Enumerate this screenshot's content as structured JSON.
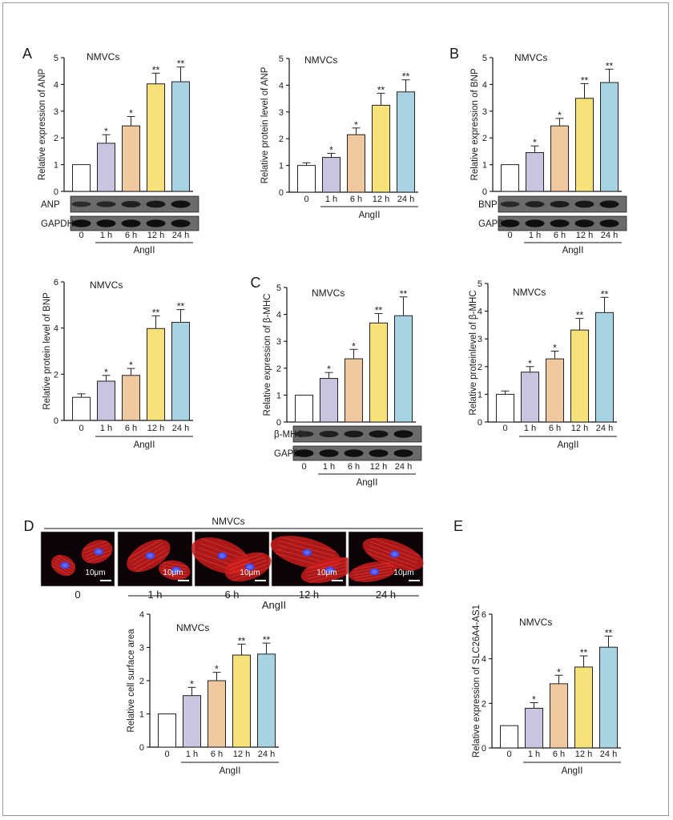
{
  "panel_letters": [
    "A",
    "B",
    "C",
    "D",
    "E"
  ],
  "categories": [
    "0",
    "1 h",
    "6 h",
    "12 h",
    "24 h"
  ],
  "group_label": "AngII",
  "colors": [
    "#ffffff",
    "#c9c4e0",
    "#f0c8a0",
    "#f7e27a",
    "#a8d3e2"
  ],
  "blots": [
    {
      "bands": [
        "ANP",
        "GAPDH"
      ],
      "intensities": [
        [
          0.35,
          0.45,
          0.6,
          0.75,
          0.85
        ],
        [
          0.9,
          0.9,
          0.9,
          0.9,
          0.9
        ]
      ]
    },
    {
      "bands": [
        "BNP",
        "GAPDH"
      ],
      "intensities": [
        [
          0.4,
          0.55,
          0.65,
          0.75,
          0.85
        ],
        [
          0.9,
          0.9,
          0.9,
          0.9,
          0.9
        ]
      ]
    },
    {
      "bands": [
        "β-MHC",
        "GAPDH"
      ],
      "intensities": [
        [
          0.45,
          0.6,
          0.7,
          0.8,
          0.9
        ],
        [
          0.9,
          0.9,
          0.9,
          0.9,
          0.9
        ]
      ]
    }
  ],
  "micrograph": {
    "header": "NMVCs",
    "scale_bar": "10μm",
    "labels": [
      "0",
      "1 h",
      "6 h",
      "12 h",
      "24 h"
    ],
    "group_label": "AngII"
  },
  "chart_data": [
    {
      "id": "A-mrna",
      "type": "bar",
      "title": "NMVCs",
      "ylabel": "Relative expression of ANP",
      "categories": [
        "0",
        "1 h",
        "6 h",
        "12 h",
        "24 h"
      ],
      "values": [
        1,
        1.8,
        2.45,
        4.02,
        4.1
      ],
      "errors": [
        0,
        0.32,
        0.35,
        0.4,
        0.55
      ],
      "significance": [
        "",
        "*",
        "*",
        "**",
        "**"
      ],
      "ylim": [
        0,
        5
      ],
      "yticks": [
        0,
        1,
        2,
        3,
        4,
        5
      ],
      "xlabel": "AngII"
    },
    {
      "id": "A-protein",
      "type": "bar",
      "title": "NMVCs",
      "ylabel": "Relative protein level of ANP",
      "categories": [
        "0",
        "1 h",
        "6 h",
        "12 h",
        "24 h"
      ],
      "values": [
        1,
        1.3,
        2.15,
        3.25,
        3.75
      ],
      "errors": [
        0.1,
        0.15,
        0.25,
        0.45,
        0.45
      ],
      "significance": [
        "",
        "*",
        "*",
        "**",
        "**"
      ],
      "ylim": [
        0,
        5
      ],
      "yticks": [
        0,
        1,
        2,
        3,
        4,
        5
      ],
      "xlabel": "AngII"
    },
    {
      "id": "B-mrna",
      "type": "bar",
      "title": "NMVCs",
      "ylabel": "Relative expression of BNP",
      "categories": [
        "0",
        "1 h",
        "6 h",
        "12 h",
        "24 h"
      ],
      "values": [
        1,
        1.45,
        2.45,
        3.48,
        4.07
      ],
      "errors": [
        0,
        0.25,
        0.28,
        0.55,
        0.5
      ],
      "significance": [
        "",
        "*",
        "*",
        "**",
        "**"
      ],
      "ylim": [
        0,
        5
      ],
      "yticks": [
        0,
        1,
        2,
        3,
        4,
        5
      ],
      "xlabel": "AngII"
    },
    {
      "id": "B-protein",
      "type": "bar",
      "title": "NMVCs",
      "ylabel": "Relative protein level of BNP",
      "categories": [
        "0",
        "1 h",
        "6 h",
        "12 h",
        "24 h"
      ],
      "values": [
        1,
        1.7,
        1.95,
        3.98,
        4.25
      ],
      "errors": [
        0.15,
        0.25,
        0.3,
        0.55,
        0.55
      ],
      "significance": [
        "",
        "*",
        "*",
        "**",
        "**"
      ],
      "ylim": [
        0,
        6
      ],
      "yticks": [
        0,
        2,
        4,
        6
      ],
      "xlabel": "AngII"
    },
    {
      "id": "C-mrna",
      "type": "bar",
      "title": "NMVCs",
      "ylabel": "Relative expression of β-MHC",
      "categories": [
        "0",
        "1 h",
        "6 h",
        "12 h",
        "24 h"
      ],
      "values": [
        1,
        1.62,
        2.35,
        3.68,
        3.95
      ],
      "errors": [
        0,
        0.22,
        0.35,
        0.35,
        0.7
      ],
      "significance": [
        "",
        "*",
        "*",
        "**",
        "**"
      ],
      "ylim": [
        0,
        5
      ],
      "yticks": [
        0,
        1,
        2,
        3,
        4,
        5
      ],
      "xlabel": "AngII"
    },
    {
      "id": "C-protein",
      "type": "bar",
      "title": "NMVCs",
      "ylabel": "Relative proteinlevel of β-MHC",
      "categories": [
        "0",
        "1 h",
        "6 h",
        "12 h",
        "24 h"
      ],
      "values": [
        1,
        1.8,
        2.28,
        3.32,
        3.95
      ],
      "errors": [
        0.12,
        0.2,
        0.28,
        0.42,
        0.55
      ],
      "significance": [
        "",
        "*",
        "*",
        "**",
        "**"
      ],
      "ylim": [
        0,
        5
      ],
      "yticks": [
        0,
        1,
        2,
        3,
        4,
        5
      ],
      "xlabel": "AngII"
    },
    {
      "id": "D-area",
      "type": "bar",
      "title": "NMVCs",
      "ylabel": "Relative cell surface area",
      "categories": [
        "0",
        "1 h",
        "6 h",
        "12 h",
        "24 h"
      ],
      "values": [
        1,
        1.55,
        2.0,
        2.77,
        2.8
      ],
      "errors": [
        0,
        0.25,
        0.25,
        0.33,
        0.33
      ],
      "significance": [
        "",
        "*",
        "*",
        "**",
        "**"
      ],
      "ylim": [
        0,
        4
      ],
      "yticks": [
        0,
        1,
        2,
        3,
        4
      ],
      "xlabel": "AngII"
    },
    {
      "id": "E-lnc",
      "type": "bar",
      "title": "NMVCs",
      "ylabel": "Relative expression of SLC26A4-AS1",
      "categories": [
        "0",
        "1 h",
        "6 h",
        "12 h",
        "24 h"
      ],
      "values": [
        1,
        1.78,
        2.88,
        3.63,
        4.52
      ],
      "errors": [
        0,
        0.25,
        0.38,
        0.5,
        0.5
      ],
      "significance": [
        "",
        "*",
        "*",
        "**",
        "**"
      ],
      "ylim": [
        0,
        6
      ],
      "yticks": [
        0,
        2,
        4,
        6
      ],
      "xlabel": "AngII"
    }
  ]
}
